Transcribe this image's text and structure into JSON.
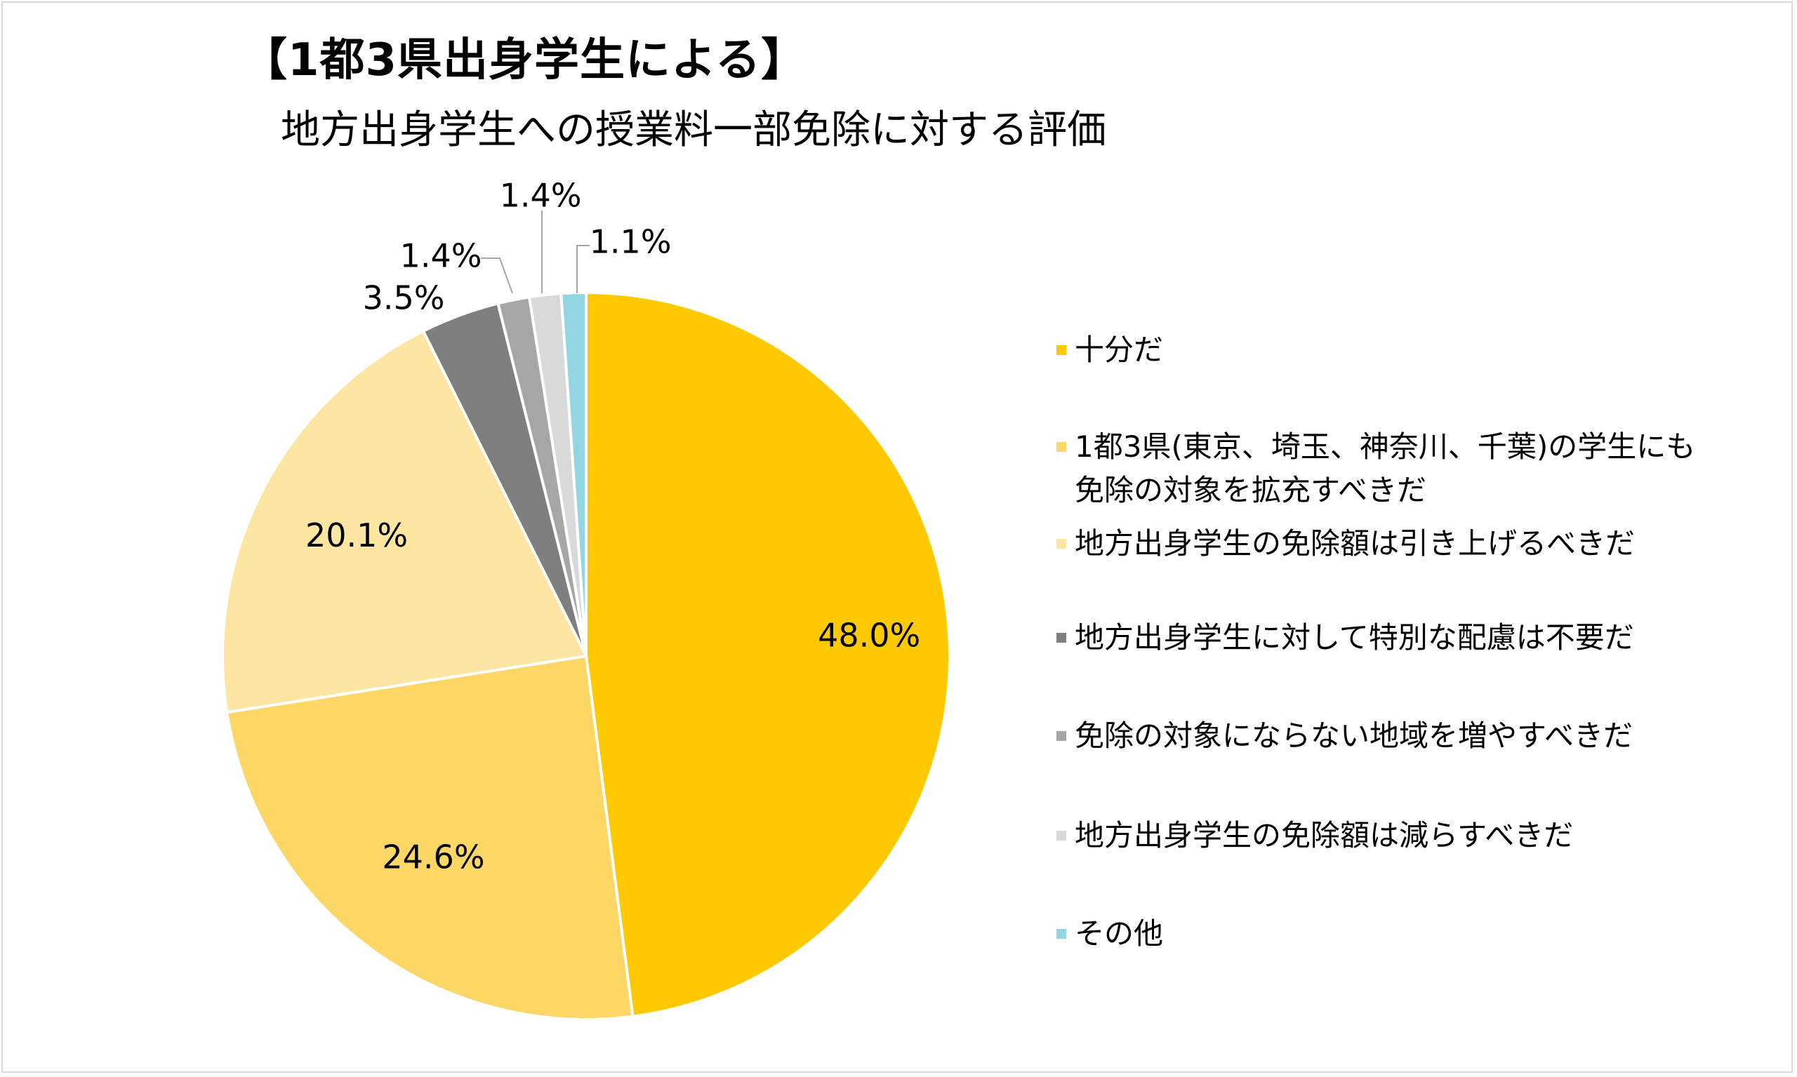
{
  "title": "【1都3県出身学生による】",
  "subtitle": "地方出身学生への授業料一部免除に対する評価",
  "chart_data": {
    "type": "pie",
    "start_angle_deg": 0,
    "direction": "clockwise",
    "slices": [
      {
        "label": "十分だ",
        "value": 48.0,
        "display": "48.0%",
        "color": "#FFC900"
      },
      {
        "label": "1都3県(東京、埼玉、神奈川、千葉)の学生にも\n免除の対象を拡充すべきだ",
        "value": 24.6,
        "display": "24.6%",
        "color": "#FDD766"
      },
      {
        "label": "地方出身学生の免除額は引き上げるべきだ",
        "value": 20.1,
        "display": "20.1%",
        "color": "#FCE6A2"
      },
      {
        "label": "地方出身学生に対して特別な配慮は不要だ",
        "value": 3.5,
        "display": "3.5%",
        "color": "#7F7F7F"
      },
      {
        "label": "免除の対象にならない地域を増やすべきだ",
        "value": 1.4,
        "display": "1.4%",
        "color": "#A6A6A6"
      },
      {
        "label": "地方出身学生の免除額は減らすべきだ",
        "value": 1.4,
        "display": "1.4%",
        "color": "#D9D9D9"
      },
      {
        "label": "その他",
        "value": 1.1,
        "display": "1.1%",
        "color": "#92D6E3"
      }
    ],
    "legend_position": "right"
  }
}
